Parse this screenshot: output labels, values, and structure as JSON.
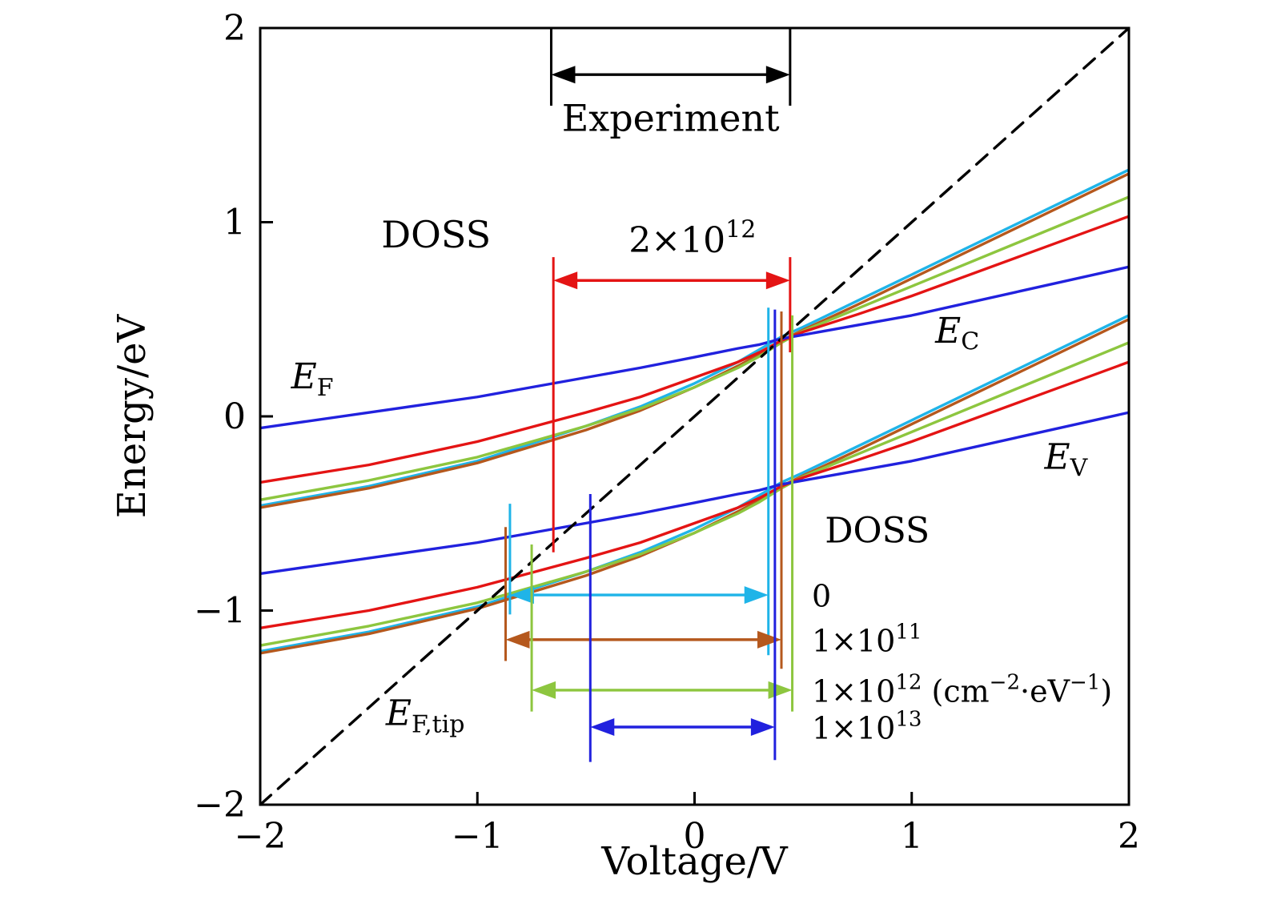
{
  "chart_data": {
    "type": "line",
    "title": "",
    "xlabel": "Voltage/V",
    "ylabel": "Energy/eV",
    "xlim": [
      -2,
      2
    ],
    "ylim": [
      -2,
      2
    ],
    "xticks": [
      -2,
      -1,
      0,
      1,
      2
    ],
    "yticks": [
      -2,
      -1,
      0,
      1,
      2
    ],
    "grid": false,
    "palette": {
      "black": "#000000",
      "blue": "#2121de",
      "red": "#e41414",
      "green": "#8dc63f",
      "brown": "#b5581d",
      "cyan": "#1fb4e8"
    },
    "x": [
      -2,
      -1.5,
      -1,
      -0.5,
      -0.25,
      0,
      0.2,
      0.3,
      0.4,
      0.5,
      0.75,
      1,
      1.5,
      2
    ],
    "series": [
      {
        "name": "E_V DOSS=0",
        "color_key": "cyan",
        "y": [
          -1.21,
          -1.11,
          -0.98,
          -0.8,
          -0.7,
          -0.58,
          -0.47,
          -0.405,
          -0.34,
          -0.29,
          -0.155,
          -0.02,
          0.25,
          0.52
        ]
      },
      {
        "name": "E_V DOSS=1e11",
        "color_key": "brown",
        "y": [
          -1.22,
          -1.12,
          -0.99,
          -0.82,
          -0.72,
          -0.6,
          -0.49,
          -0.43,
          -0.36,
          -0.305,
          -0.175,
          -0.04,
          0.23,
          0.5
        ]
      },
      {
        "name": "E_V DOSS=1e12",
        "color_key": "green",
        "y": [
          -1.18,
          -1.08,
          -0.96,
          -0.8,
          -0.71,
          -0.6,
          -0.5,
          -0.44,
          -0.37,
          -0.31,
          -0.195,
          -0.08,
          0.15,
          0.38
        ]
      },
      {
        "name": "E_V DOSS=2e12",
        "color_key": "red",
        "y": [
          -1.09,
          -1.0,
          -0.88,
          -0.73,
          -0.65,
          -0.55,
          -0.47,
          -0.42,
          -0.36,
          -0.315,
          -0.225,
          -0.13,
          0.075,
          0.28
        ]
      },
      {
        "name": "E_V DOSS=1e13",
        "color_key": "blue",
        "y": [
          -0.81,
          -0.73,
          -0.65,
          -0.55,
          -0.5,
          -0.445,
          -0.4,
          -0.38,
          -0.35,
          -0.33,
          -0.28,
          -0.23,
          -0.105,
          0.02
        ]
      },
      {
        "name": "E_C DOSS=0",
        "color_key": "cyan",
        "y": [
          -0.46,
          -0.36,
          -0.23,
          -0.05,
          0.05,
          0.17,
          0.28,
          0.345,
          0.41,
          0.46,
          0.595,
          0.73,
          1.0,
          1.27
        ]
      },
      {
        "name": "E_C DOSS=1e11",
        "color_key": "brown",
        "y": [
          -0.47,
          -0.37,
          -0.24,
          -0.07,
          0.03,
          0.15,
          0.26,
          0.32,
          0.39,
          0.445,
          0.575,
          0.71,
          0.98,
          1.25
        ]
      },
      {
        "name": "E_C DOSS=1e12",
        "color_key": "green",
        "y": [
          -0.43,
          -0.33,
          -0.21,
          -0.05,
          0.04,
          0.15,
          0.25,
          0.31,
          0.38,
          0.44,
          0.555,
          0.67,
          0.9,
          1.13
        ]
      },
      {
        "name": "E_C DOSS=2e12",
        "color_key": "red",
        "y": [
          -0.34,
          -0.25,
          -0.13,
          0.02,
          0.1,
          0.2,
          0.28,
          0.33,
          0.39,
          0.435,
          0.525,
          0.62,
          0.825,
          1.03
        ]
      },
      {
        "name": "E_C DOSS=1e13",
        "color_key": "blue",
        "y": [
          -0.06,
          0.02,
          0.1,
          0.2,
          0.25,
          0.305,
          0.35,
          0.37,
          0.4,
          0.42,
          0.47,
          0.52,
          0.645,
          0.77
        ]
      },
      {
        "name": "E_F_tip",
        "color_key": "black",
        "dashed": true,
        "x": [
          -2,
          2
        ],
        "y": [
          -2,
          2
        ]
      }
    ],
    "annotations": {
      "top_bracket": {
        "label": "Experiment",
        "x1": -0.66,
        "x2": 0.44,
        "arrow_y": 1.76,
        "bar_top": 2.0,
        "bar_bottom": 1.6,
        "label_x": -0.11,
        "label_y": 1.47,
        "color_key": "black"
      },
      "red_bracket": {
        "label": "2×10^{12}",
        "x1": -0.65,
        "x2": 0.44,
        "arrow_y": 0.7,
        "left_bar": [
          -0.7,
          0.82
        ],
        "right_bar": [
          0.33,
          0.82
        ],
        "label_x": -0.01,
        "label_y": 0.845,
        "color_key": "red"
      },
      "text_labels": [
        {
          "text": "DOSS",
          "x": -1.19,
          "y": 0.87,
          "italic": false,
          "anchor": "middle",
          "size": 46
        },
        {
          "text": "E_{F}",
          "x": -1.76,
          "y": 0.144,
          "italic": true,
          "anchor": "middle",
          "size": 44
        },
        {
          "text": "E_{C}",
          "x": 1.21,
          "y": 0.38,
          "italic": true,
          "anchor": "middle",
          "size": 44
        },
        {
          "text": "E_{V}",
          "x": 1.71,
          "y": -0.27,
          "italic": true,
          "anchor": "middle",
          "size": 44
        },
        {
          "text": "E_{F,tip}",
          "x": -1.24,
          "y": -1.59,
          "italic": true,
          "anchor": "middle",
          "size": 44
        },
        {
          "text": "DOSS",
          "x": 0.6,
          "y": -0.65,
          "italic": false,
          "anchor": "start",
          "size": 44
        }
      ],
      "doss_markers": [
        {
          "label": "0",
          "color_key": "cyan",
          "x1": -0.85,
          "x2": 0.34,
          "y": -0.92,
          "left_bar": [
            -1.02,
            -0.45
          ],
          "right_bar": [
            -1.23,
            0.56
          ],
          "label_x": 0.54,
          "label_y": -0.98
        },
        {
          "label": "1×10^{11}",
          "color_key": "brown",
          "x1": -0.87,
          "x2": 0.4,
          "y": -1.15,
          "left_bar": [
            -1.26,
            -0.57
          ],
          "right_bar": [
            -1.3,
            0.54
          ],
          "label_x": 0.54,
          "label_y": -1.21
        },
        {
          "label": "1×10^{12} (cm^{−2}·eV^{−1})",
          "color_key": "green",
          "x1": -0.75,
          "x2": 0.45,
          "y": -1.41,
          "left_bar": [
            -1.52,
            -0.66
          ],
          "right_bar": [
            -1.52,
            0.52
          ],
          "label_x": 0.54,
          "label_y": -1.47
        },
        {
          "label": "1×10^{13}",
          "color_key": "blue",
          "x1": -0.48,
          "x2": 0.37,
          "y": -1.6,
          "left_bar": [
            -1.78,
            -0.4
          ],
          "right_bar": [
            -1.77,
            0.55
          ],
          "label_x": 0.54,
          "label_y": -1.66
        }
      ]
    }
  }
}
